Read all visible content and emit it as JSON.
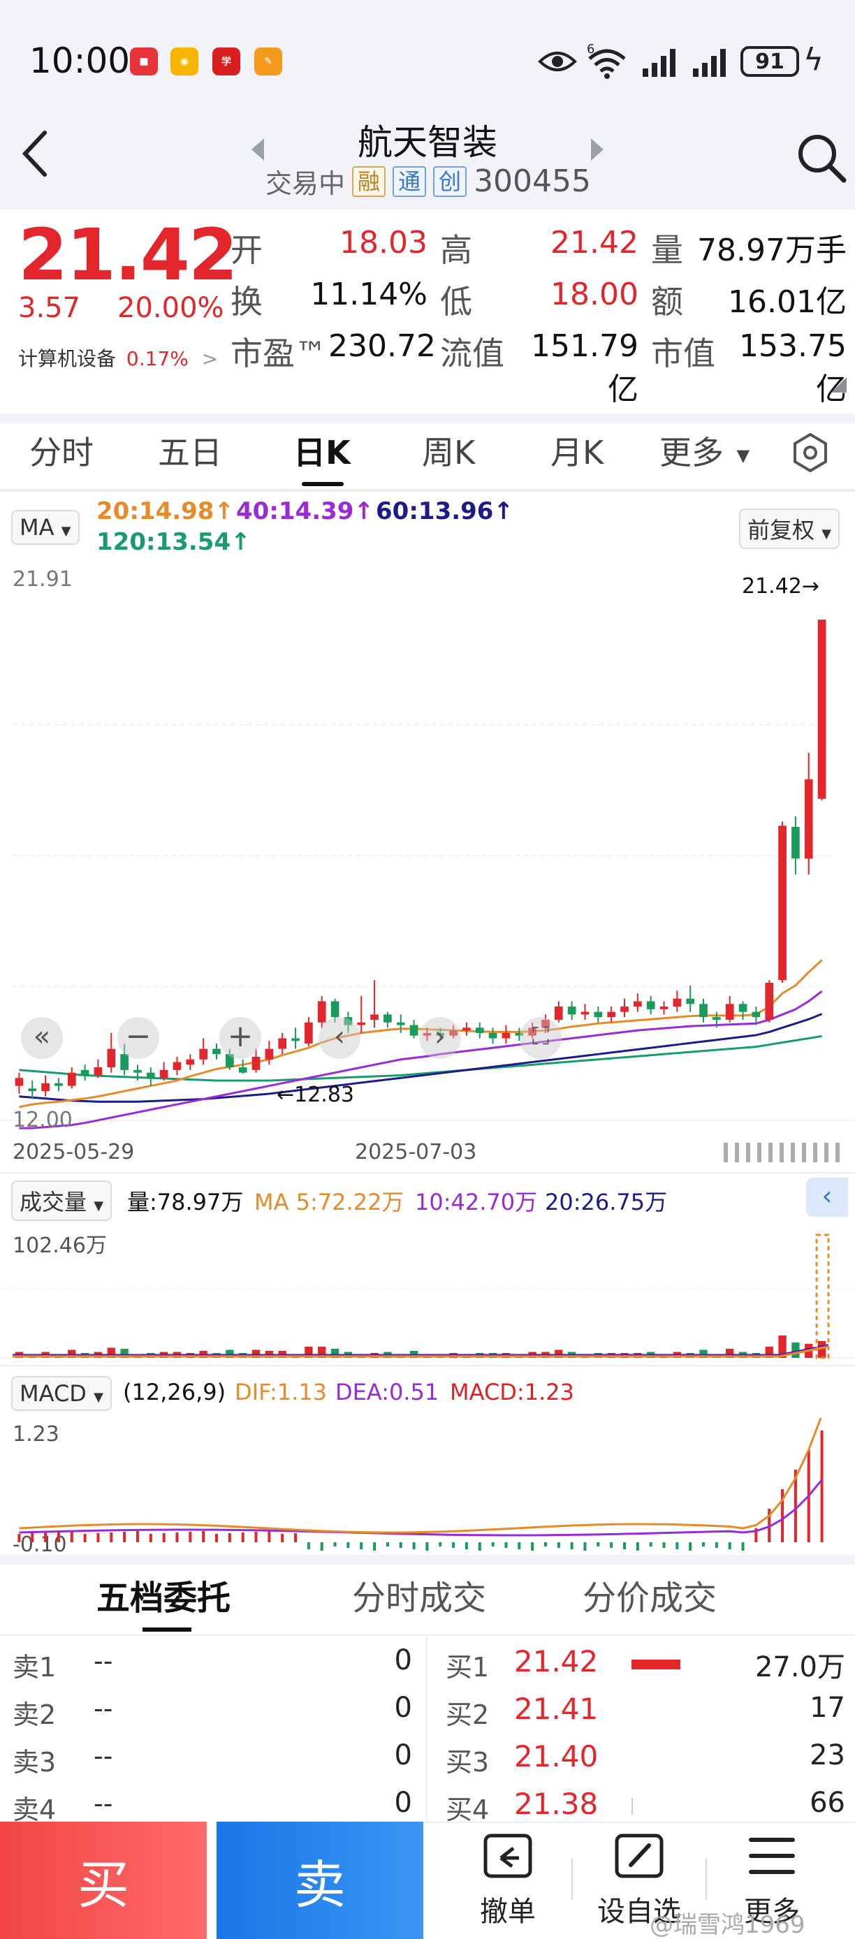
{
  "status_bar": {
    "time": "10:00",
    "battery": "91",
    "network": "6"
  },
  "header": {
    "stock_name": "航天智装",
    "trading_status": "交易中",
    "tags": [
      "融",
      "通",
      "创"
    ],
    "stock_code": "300455"
  },
  "quote": {
    "last_price": "21.42",
    "change": "3.57",
    "change_pct": "20.00%",
    "industry_label": "计算机设备",
    "industry_pct": "0.17%",
    "industry_arrow": ">",
    "fields": [
      {
        "label": "开",
        "value": "18.03",
        "color": "red"
      },
      {
        "label": "高",
        "value": "21.42",
        "color": "red"
      },
      {
        "label": "量",
        "value": "78.97万手",
        "color": "dark"
      },
      {
        "label": "换",
        "value": "11.14%",
        "color": "dark"
      },
      {
        "label": "低",
        "value": "18.00",
        "color": "red"
      },
      {
        "label": "额",
        "value": "16.01亿",
        "color": "dark"
      },
      {
        "label": "市盈™",
        "value": "230.72",
        "color": "dark"
      },
      {
        "label": "流值",
        "value": "151.79亿",
        "color": "dark"
      },
      {
        "label": "市值",
        "value": "153.75亿",
        "color": "dark"
      }
    ]
  },
  "tabs": [
    "分时",
    "五日",
    "日K",
    "周K",
    "月K",
    "更多"
  ],
  "active_tab": "日K",
  "ma_legend": {
    "selector": "MA",
    "items": [
      {
        "text": "20:14.98↑",
        "color": "#e88a2a"
      },
      {
        "text": "40:14.39↑",
        "color": "#9a2ad6"
      },
      {
        "text": "60:13.96↑",
        "color": "#1b1b8a"
      },
      {
        "text": "120:13.54↑",
        "color": "#1a9b6b"
      }
    ],
    "adjust": "前复权"
  },
  "chart_data": {
    "type": "candlestick",
    "y_max_label": "21.91",
    "y_min_label": "12.00",
    "ylim": [
      12.0,
      21.91
    ],
    "x_labels": [
      "2025-05-29",
      "2025-07-03"
    ],
    "high_marker": "21.42→",
    "low_marker": "←12.83",
    "candles": [
      [
        12.6,
        12.75,
        12.45,
        12.85
      ],
      [
        12.55,
        12.5,
        12.35,
        12.7
      ],
      [
        12.5,
        12.65,
        12.4,
        12.8
      ],
      [
        12.65,
        12.6,
        12.5,
        12.75
      ],
      [
        12.6,
        12.85,
        12.55,
        12.95
      ],
      [
        12.9,
        12.8,
        12.7,
        13.0
      ],
      [
        12.8,
        12.95,
        12.75,
        13.1
      ],
      [
        12.95,
        13.3,
        12.85,
        13.6
      ],
      [
        13.2,
        12.9,
        12.8,
        13.4
      ],
      [
        12.9,
        12.85,
        12.7,
        13.0
      ],
      [
        12.85,
        12.75,
        12.6,
        12.95
      ],
      [
        12.75,
        12.9,
        12.7,
        13.05
      ],
      [
        12.9,
        13.05,
        12.8,
        13.15
      ],
      [
        13.0,
        13.1,
        12.9,
        13.2
      ],
      [
        13.1,
        13.3,
        13.0,
        13.5
      ],
      [
        13.3,
        13.2,
        13.1,
        13.4
      ],
      [
        13.2,
        12.95,
        12.9,
        13.3
      ],
      [
        12.95,
        12.85,
        12.83,
        13.1
      ],
      [
        12.9,
        13.15,
        12.85,
        13.3
      ],
      [
        13.1,
        13.3,
        13.0,
        13.45
      ],
      [
        13.3,
        13.5,
        13.2,
        13.6
      ],
      [
        13.5,
        13.45,
        13.3,
        13.7
      ],
      [
        13.4,
        13.8,
        13.35,
        13.9
      ],
      [
        13.8,
        14.2,
        13.7,
        14.3
      ],
      [
        14.2,
        13.9,
        13.8,
        14.25
      ],
      [
        13.9,
        13.75,
        13.6,
        14.0
      ],
      [
        13.75,
        13.8,
        13.6,
        14.3
      ],
      [
        13.85,
        13.95,
        13.7,
        14.6
      ],
      [
        13.95,
        13.8,
        13.7,
        14.0
      ],
      [
        13.8,
        13.75,
        13.6,
        13.95
      ],
      [
        13.75,
        13.55,
        13.5,
        13.85
      ],
      [
        13.55,
        13.6,
        13.45,
        13.7
      ],
      [
        13.6,
        13.55,
        13.45,
        13.7
      ],
      [
        13.55,
        13.65,
        13.5,
        13.75
      ],
      [
        13.65,
        13.7,
        13.55,
        13.8
      ],
      [
        13.7,
        13.6,
        13.5,
        13.8
      ],
      [
        13.6,
        13.5,
        13.4,
        13.7
      ],
      [
        13.5,
        13.6,
        13.4,
        13.75
      ],
      [
        13.6,
        13.55,
        13.45,
        13.7
      ],
      [
        13.55,
        13.7,
        13.5,
        13.8
      ],
      [
        13.7,
        13.85,
        13.6,
        13.95
      ],
      [
        13.85,
        14.1,
        13.8,
        14.2
      ],
      [
        14.1,
        13.95,
        13.85,
        14.2
      ],
      [
        13.95,
        14.0,
        13.85,
        14.15
      ],
      [
        14.0,
        13.9,
        13.8,
        14.1
      ],
      [
        13.9,
        14.0,
        13.8,
        14.1
      ],
      [
        14.0,
        14.1,
        13.9,
        14.25
      ],
      [
        14.1,
        14.2,
        14.0,
        14.35
      ],
      [
        14.2,
        14.05,
        13.95,
        14.3
      ],
      [
        14.05,
        14.1,
        13.95,
        14.2
      ],
      [
        14.1,
        14.25,
        14.0,
        14.4
      ],
      [
        14.25,
        14.15,
        14.0,
        14.5
      ],
      [
        14.15,
        13.9,
        13.8,
        14.25
      ],
      [
        13.9,
        13.85,
        13.7,
        14.0
      ],
      [
        13.85,
        14.15,
        13.8,
        14.3
      ],
      [
        14.15,
        14.0,
        13.85,
        14.2
      ],
      [
        14.0,
        13.9,
        13.75,
        14.1
      ],
      [
        13.85,
        14.55,
        13.8,
        14.6
      ],
      [
        14.6,
        17.52,
        14.55,
        17.6
      ],
      [
        17.5,
        16.9,
        16.6,
        17.7
      ],
      [
        16.9,
        18.4,
        16.6,
        18.9
      ],
      [
        18.03,
        21.42,
        18.0,
        21.42
      ]
    ],
    "ma20": [
      12.2,
      12.25,
      12.28,
      12.3,
      12.33,
      12.36,
      12.4,
      12.45,
      12.5,
      12.55,
      12.6,
      12.65,
      12.7,
      12.78,
      12.85,
      12.92,
      12.96,
      13.0,
      13.05,
      13.1,
      13.18,
      13.25,
      13.32,
      13.42,
      13.5,
      13.55,
      13.6,
      13.63,
      13.66,
      13.68,
      13.68,
      13.67,
      13.66,
      13.65,
      13.64,
      13.63,
      13.62,
      13.62,
      13.62,
      13.63,
      13.65,
      13.68,
      13.72,
      13.75,
      13.78,
      13.8,
      13.82,
      13.84,
      13.86,
      13.88,
      13.9,
      13.92,
      13.93,
      13.93,
      13.93,
      13.93,
      13.95,
      14.1,
      14.35,
      14.5,
      14.75,
      14.98
    ],
    "ma40": [
      11.8,
      11.8,
      11.82,
      11.84,
      11.86,
      11.9,
      11.95,
      12.0,
      12.05,
      12.1,
      12.15,
      12.2,
      12.25,
      12.3,
      12.35,
      12.4,
      12.45,
      12.5,
      12.55,
      12.6,
      12.65,
      12.7,
      12.75,
      12.8,
      12.85,
      12.9,
      12.95,
      13.0,
      13.05,
      13.1,
      13.13,
      13.16,
      13.2,
      13.23,
      13.26,
      13.29,
      13.32,
      13.35,
      13.38,
      13.41,
      13.44,
      13.47,
      13.5,
      13.53,
      13.56,
      13.59,
      13.62,
      13.65,
      13.67,
      13.69,
      13.71,
      13.73,
      13.74,
      13.75,
      13.76,
      13.77,
      13.78,
      13.85,
      13.95,
      14.05,
      14.2,
      14.39
    ],
    "ma60": [
      12.4,
      12.38,
      12.36,
      12.34,
      12.32,
      12.31,
      12.3,
      12.3,
      12.3,
      12.3,
      12.31,
      12.32,
      12.33,
      12.34,
      12.35,
      12.37,
      12.39,
      12.41,
      12.43,
      12.45,
      12.48,
      12.51,
      12.54,
      12.57,
      12.6,
      12.63,
      12.66,
      12.69,
      12.72,
      12.75,
      12.78,
      12.81,
      12.84,
      12.87,
      12.9,
      12.93,
      12.96,
      12.99,
      13.02,
      13.05,
      13.08,
      13.11,
      13.14,
      13.17,
      13.2,
      13.23,
      13.26,
      13.29,
      13.32,
      13.35,
      13.38,
      13.41,
      13.44,
      13.47,
      13.5,
      13.53,
      13.56,
      13.62,
      13.7,
      13.78,
      13.86,
      13.96
    ],
    "ma120": [
      12.9,
      12.88,
      12.86,
      12.84,
      12.82,
      12.8,
      12.79,
      12.78,
      12.77,
      12.76,
      12.75,
      12.74,
      12.73,
      12.72,
      12.71,
      12.7,
      12.7,
      12.7,
      12.7,
      12.7,
      12.71,
      12.72,
      12.73,
      12.74,
      12.75,
      12.76,
      12.77,
      12.78,
      12.79,
      12.8,
      12.82,
      12.84,
      12.86,
      12.88,
      12.9,
      12.92,
      12.94,
      12.96,
      12.98,
      13.0,
      13.02,
      13.04,
      13.06,
      13.08,
      13.1,
      13.12,
      13.14,
      13.16,
      13.18,
      13.2,
      13.22,
      13.24,
      13.26,
      13.28,
      13.3,
      13.32,
      13.34,
      13.38,
      13.42,
      13.46,
      13.5,
      13.54
    ]
  },
  "volume": {
    "selector": "成交量",
    "label": "量:78.97万",
    "ma5": "MA 5:72.22万",
    "ma10": "10:42.70万",
    "ma20": "20:26.75万",
    "max_label": "102.46万"
  },
  "macd": {
    "selector": "MACD",
    "params": "(12,26,9)",
    "dif": "DIF:1.13",
    "dea": "DEA:0.51",
    "macd": "MACD:1.23",
    "max_label": "1.23",
    "min_label": "-0.10"
  },
  "order_book": {
    "tabs": [
      "五档委托",
      "分时成交",
      "分价成交"
    ],
    "asks": [
      {
        "label": "卖1",
        "price": "--",
        "vol": "0"
      },
      {
        "label": "卖2",
        "price": "--",
        "vol": "0"
      },
      {
        "label": "卖3",
        "price": "--",
        "vol": "0"
      },
      {
        "label": "卖4",
        "price": "--",
        "vol": "0"
      }
    ],
    "bids": [
      {
        "label": "买1",
        "price": "21.42",
        "vol": "27.0万",
        "bar": 1.0
      },
      {
        "label": "买2",
        "price": "21.41",
        "vol": "17",
        "bar": 0.0
      },
      {
        "label": "买3",
        "price": "21.40",
        "vol": "23",
        "bar": 0.0
      },
      {
        "label": "买4",
        "price": "21.38",
        "vol": "66",
        "bar": 0.02
      }
    ]
  },
  "bottom_bar": {
    "buy": "买",
    "sell": "卖",
    "cancel": "撤单",
    "custom": "设自选",
    "more": "更多",
    "watermark": "@瑞雪鸿1969"
  }
}
